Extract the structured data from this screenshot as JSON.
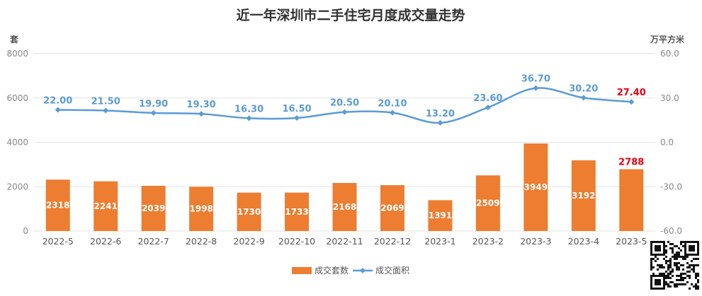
{
  "chart_data": {
    "type": "bar+line",
    "title": "近一年深圳市二手住宅月度成交量走势",
    "categories": [
      "2022-5",
      "2022-6",
      "2022-7",
      "2022-8",
      "2022-9",
      "2022-10",
      "2022-11",
      "2022-12",
      "2023-1",
      "2023-2",
      "2023-3",
      "2023-4",
      "2023-5"
    ],
    "y_left": {
      "unit": "套",
      "range": [
        0,
        8000
      ],
      "ticks": [
        "0",
        "2000",
        "4000",
        "6000",
        "8000"
      ]
    },
    "y_right": {
      "unit": "万平方米",
      "range": [
        -60,
        60
      ],
      "ticks": [
        "-60.0",
        "-30.0",
        "0.0",
        "30.0",
        "60.0"
      ]
    },
    "grid": true,
    "legend_position": "bottom-center",
    "series": [
      {
        "name": "成交套数",
        "type": "bar",
        "axis": "left",
        "color": "#ED7D31",
        "values": [
          2318,
          2241,
          2039,
          1998,
          1730,
          1733,
          2168,
          2069,
          1391,
          2509,
          3949,
          3192,
          2788
        ],
        "labels": [
          "2318",
          "2241",
          "2039",
          "1998",
          "1730",
          "1733",
          "2168",
          "2069",
          "1391",
          "2509",
          "3949",
          "3192",
          "2788"
        ]
      },
      {
        "name": "成交面积",
        "type": "line",
        "axis": "right",
        "color": "#5B9BD5",
        "values": [
          22.0,
          21.5,
          19.9,
          19.3,
          16.3,
          16.5,
          20.5,
          20.1,
          13.2,
          23.6,
          36.7,
          30.2,
          27.4
        ],
        "labels": [
          "22.00",
          "21.50",
          "19.90",
          "19.30",
          "16.30",
          "16.50",
          "20.50",
          "20.10",
          "13.20",
          "23.60",
          "36.70",
          "30.20",
          "27.40"
        ]
      }
    ],
    "highlight_color": "#E60012"
  }
}
